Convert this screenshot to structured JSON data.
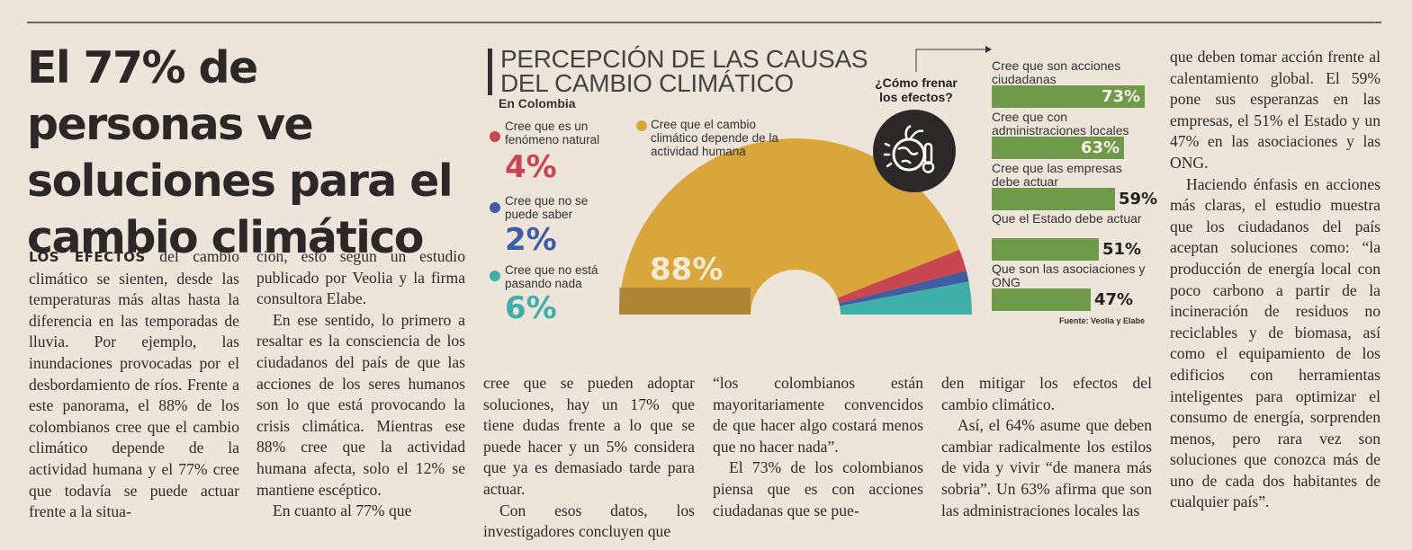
{
  "headline": "El 77% de personas ve soluciones para el cambio climático",
  "col1": {
    "lead": "LOS EFECTOS",
    "text": " del cambio climático se sienten, desde las temperaturas más altas hasta la diferencia en las temporadas de lluvia. Por ejemplo, las inundaciones provocadas por el desbordamiento de ríos. Frente a este panorama, el 88% de los colombianos cree que el cambio climático depende de la actividad humana y el 77% cree que todavía se puede actuar frente a la situa-"
  },
  "col2": {
    "p1": "ción, esto según un estudio publicado por Veolia y la firma consultora Elabe.",
    "p2": "En ese sentido, lo primero a resaltar es la consciencia de los ciudadanos del país de que las acciones de los seres humanos son lo que está provocando la crisis climática. Mientras ese 88% cree que la actividad humana afecta, solo el 12% se mantiene escéptico.",
    "p3": "En cuanto al 77% que"
  },
  "col3": {
    "p1": "cree que se pueden adoptar soluciones, hay un 17% que tiene dudas frente a lo que se puede hacer y un 5% considera que ya es demasiado tarde para actuar.",
    "p2": "Con esos datos, los investigadores concluyen que"
  },
  "col4": {
    "p1": "“los colombianos están mayoritariamente convencidos de que hacer algo costará menos que no hacer nada”.",
    "p2": "El 73% de los colombianos piensa que es con acciones ciudadanas que se pue-"
  },
  "col5": {
    "p1": "den mitigar los efectos del cambio climático.",
    "p2": "Así, el 64% asume que deben cambiar radicalmente los estilos de vida y vivir “de manera más sobria”. Un 63% afirma que son las administraciones locales las"
  },
  "col6": {
    "p1": "que deben tomar acción frente al calentamiento global. El 59% pone sus esperanzas en las empresas, el 51% el Estado y un 47% en las asociaciones y las ONG.",
    "p2": "Haciendo énfasis en acciones más claras, el estudio muestra que los ciudadanos del país aceptan soluciones como: “la producción de energía local con poco carbono a partir de la incineración de residuos no reciclables y de biomasa, así como el equipamiento de los edificios con herramientas inteligentes para optimizar el consumo de energía, sorprenden menos, pero rara vez son soluciones que conozca más de uno de cada dos habitantes de cualquier país”."
  },
  "infographic": {
    "title_line1": "PERCEPCIÓN DE LAS CAUSAS",
    "title_line2": "DEL CAMBIO CLIMÁTICO",
    "country": "En Colombia",
    "question": "¿Cómo frenar los efectos?",
    "source": "Fuente: Veolia y Elabe",
    "icon": "globe-thermometer-icon",
    "big_label": "88%",
    "legend": [
      {
        "text": "Cree que el cambio climático depende de la actividad humana",
        "color": "#d9a63c"
      },
      {
        "text": "Cree que es un fenómeno natural",
        "pct": "4%",
        "color": "#c9454f"
      },
      {
        "text": "Cree que no se puede saber",
        "pct": "2%",
        "color": "#3f5da2"
      },
      {
        "text": "Cree que no está pasando nada",
        "pct": "6%",
        "color": "#3fb0a9"
      }
    ],
    "bars": [
      {
        "label": "Cree que son acciones ciudadanas",
        "pct": "73%",
        "value": 73,
        "inside": true
      },
      {
        "label": "Cree que con administraciones locales",
        "pct": "63%",
        "value": 63,
        "inside": true
      },
      {
        "label": "Cree que las empresas debe actuar",
        "pct": "59%",
        "value": 59,
        "inside": false
      },
      {
        "label": "Que el Estado debe actuar",
        "pct": "51%",
        "value": 51,
        "inside": false
      },
      {
        "label": "Que son las asociaciones y ONG",
        "pct": "47%",
        "value": 47,
        "inside": false
      }
    ]
  },
  "chart_data": [
    {
      "type": "pie",
      "title": "PERCEPCIÓN DE LAS CAUSAS DEL CAMBIO CLIMÁTICO",
      "subtitle": "En Colombia",
      "categories": [
        "Cree que el cambio climático depende de la actividad humana",
        "Cree que es un fenómeno natural",
        "Cree que no se puede saber",
        "Cree que no está pasando nada"
      ],
      "values": [
        88,
        4,
        2,
        6
      ],
      "colors": [
        "#d9a63c",
        "#c9454f",
        "#3f5da2",
        "#3fb0a9"
      ]
    },
    {
      "type": "bar",
      "title": "¿Cómo frenar los efectos?",
      "categories": [
        "Cree que son acciones ciudadanas",
        "Cree que con administraciones locales",
        "Cree que las empresas debe actuar",
        "Que el Estado debe actuar",
        "Que son las asociaciones y ONG"
      ],
      "values": [
        73,
        63,
        59,
        51,
        47
      ],
      "xlim": [
        0,
        100
      ],
      "color": "#6e9a4a"
    }
  ]
}
